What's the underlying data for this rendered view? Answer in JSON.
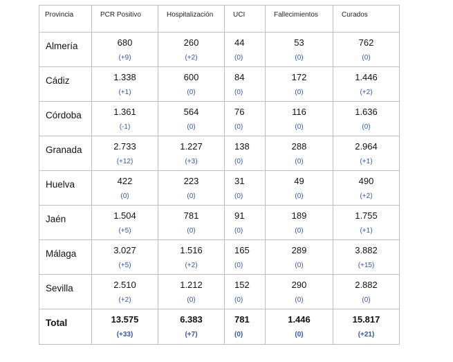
{
  "headers": [
    "Provincia",
    "PCR Positivo",
    "Hospitalización",
    "UCI",
    "Fallecimientos",
    "Curados"
  ],
  "rows": [
    {
      "name": "Almería",
      "pcr": "680",
      "pcr_chg": "(+9)",
      "hosp": "260",
      "hosp_chg": "(+2)",
      "uci": "44",
      "uci_chg": "(0)",
      "fall": "53",
      "fall_chg": "(0)",
      "cur": "762",
      "cur_chg": "(0)"
    },
    {
      "name": "Cádiz",
      "pcr": "1.338",
      "pcr_chg": "(+1)",
      "hosp": "600",
      "hosp_chg": "(0)",
      "uci": "84",
      "uci_chg": "(0)",
      "fall": "172",
      "fall_chg": "(0)",
      "cur": "1.446",
      "cur_chg": "(+2)"
    },
    {
      "name": "Córdoba",
      "pcr": "1.361",
      "pcr_chg": "(-1)",
      "hosp": "564",
      "hosp_chg": "(0)",
      "uci": "76",
      "uci_chg": "(0)",
      "fall": "116",
      "fall_chg": "(0)",
      "cur": "1.636",
      "cur_chg": "(0)"
    },
    {
      "name": "Granada",
      "pcr": "2.733",
      "pcr_chg": "(+12)",
      "hosp": "1.227",
      "hosp_chg": "(+3)",
      "uci": "138",
      "uci_chg": "(0)",
      "fall": "288",
      "fall_chg": "(0)",
      "cur": "2.964",
      "cur_chg": "(+1)"
    },
    {
      "name": "Huelva",
      "pcr": "422",
      "pcr_chg": "(0)",
      "hosp": "223",
      "hosp_chg": "(0)",
      "uci": "31",
      "uci_chg": "(0)",
      "fall": "49",
      "fall_chg": "(0)",
      "cur": "490",
      "cur_chg": "(+2)"
    },
    {
      "name": "Jaén",
      "pcr": "1.504",
      "pcr_chg": "(+5)",
      "hosp": "781",
      "hosp_chg": "(0)",
      "uci": "91",
      "uci_chg": "(0)",
      "fall": "189",
      "fall_chg": "(0)",
      "cur": "1.755",
      "cur_chg": "(+1)"
    },
    {
      "name": "Málaga",
      "pcr": "3.027",
      "pcr_chg": "(+5)",
      "hosp": "1.516",
      "hosp_chg": "(+2)",
      "uci": "165",
      "uci_chg": "(0)",
      "fall": "289",
      "fall_chg": "(0)",
      "cur": "3.882",
      "cur_chg": "(+15)"
    },
    {
      "name": "Sevilla",
      "pcr": "2.510",
      "pcr_chg": "(+2)",
      "hosp": "1.212",
      "hosp_chg": "(0)",
      "uci": "152",
      "uci_chg": "(0)",
      "fall": "290",
      "fall_chg": "(0)",
      "cur": "2.882",
      "cur_chg": "(0)"
    }
  ],
  "total": {
    "name": "Total",
    "pcr": "13.575",
    "pcr_chg": "(+33)",
    "hosp": "6.383",
    "hosp_chg": "(+7)",
    "uci": "781",
    "uci_chg": "(0)",
    "fall": "1.446",
    "fall_chg": "(0)",
    "cur": "15.817",
    "cur_chg": "(+21)"
  },
  "colors": {
    "change_text": "#2f55b4",
    "border": "#bdbdbd"
  }
}
